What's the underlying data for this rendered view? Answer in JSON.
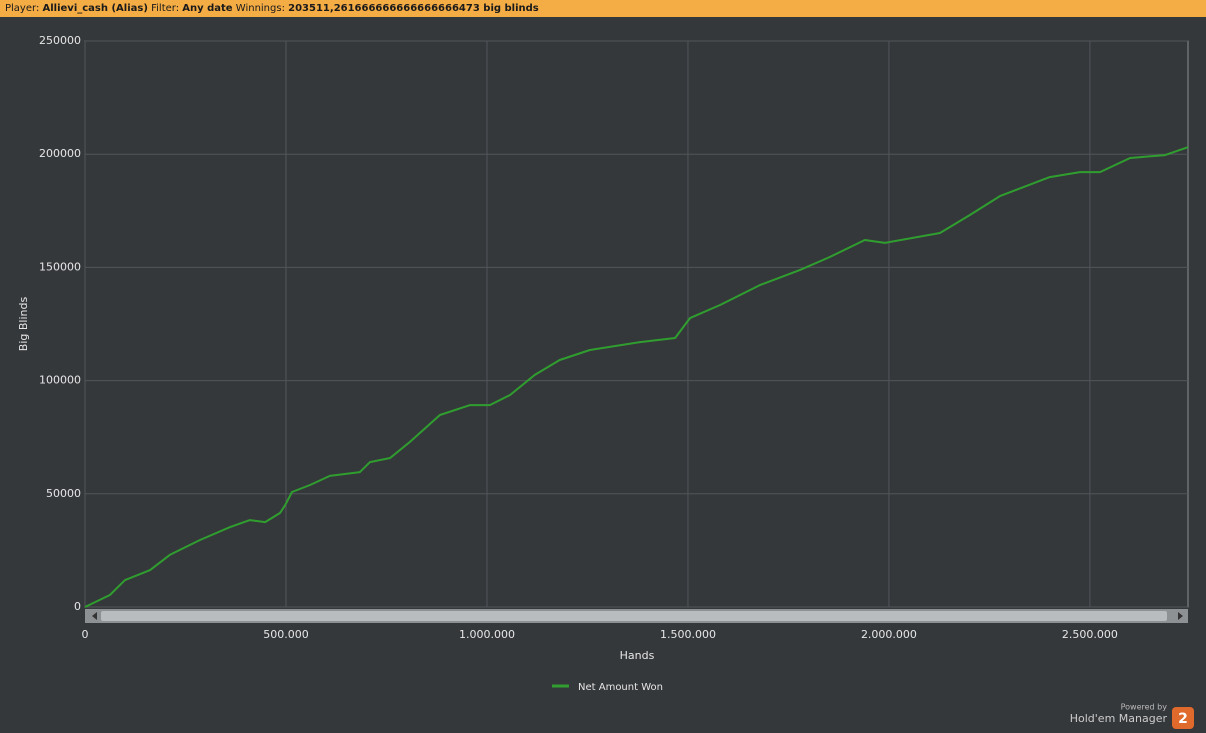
{
  "header": {
    "player_label": "Player:",
    "player": "Allievi_cash (Alias)",
    "filter_label": "Filter:",
    "filter": "Any date",
    "winnings_label": "Winnings:",
    "winnings": "203511,261666666666666666473 big blinds"
  },
  "branding": {
    "powered_by": "Powered by",
    "product": "Hold'em Manager",
    "badge": "2"
  },
  "chart_data": {
    "type": "line",
    "x_label": "Hands",
    "y_label": "Big Blinds",
    "grid": true,
    "legend": "bottom",
    "xlim": [
      0,
      2744000
    ],
    "ylim": [
      0,
      250000
    ],
    "xticks": [
      0,
      {
        "value": 500000,
        "label": "500.000"
      },
      {
        "value": 1000000,
        "label": "1.000.000"
      },
      {
        "value": 1500000,
        "label": "1.500.000"
      },
      {
        "value": 2000000,
        "label": "2.000.000"
      },
      {
        "value": 2500000,
        "label": "2.500.000"
      }
    ],
    "yticks": [
      0,
      50000,
      100000,
      150000,
      200000,
      250000
    ],
    "x": [
      0,
      62000,
      99500,
      162000,
      211000,
      286000,
      361000,
      410000,
      448000,
      485000,
      498000,
      515000,
      560000,
      609000,
      684000,
      709000,
      759000,
      808000,
      883000,
      958000,
      1007000,
      1057000,
      1119000,
      1181000,
      1256000,
      1381000,
      1468000,
      1505000,
      1580000,
      1679000,
      1779000,
      1853000,
      1940000,
      1990000,
      2127000,
      2201000,
      2276000,
      2400000,
      2475000,
      2525000,
      2600000,
      2687000,
      2744000
    ],
    "series": [
      {
        "name": "Net Amount Won",
        "color": "#2f9e2f",
        "values": [
          0,
          5300,
          11900,
          16300,
          23000,
          29600,
          35300,
          38400,
          37500,
          41500,
          45000,
          50800,
          53900,
          57900,
          59600,
          64000,
          65800,
          72900,
          84800,
          89200,
          89200,
          93600,
          102500,
          109100,
          113500,
          117000,
          118800,
          127600,
          133400,
          142200,
          148900,
          154600,
          162100,
          160800,
          165200,
          173100,
          181500,
          189900,
          192100,
          192100,
          198300,
          199600,
          203100
        ]
      }
    ]
  }
}
